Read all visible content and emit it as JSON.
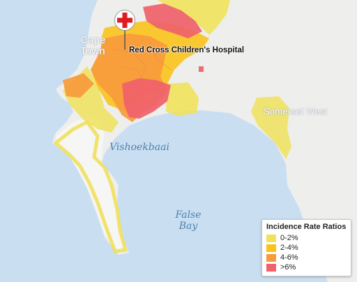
{
  "map": {
    "places": {
      "cape_town": "Cape\nTown",
      "somerset_west": "Somerset West"
    },
    "water": {
      "vishoekbaai": "Vishoekbaai",
      "false_bay": "False\nBay"
    },
    "marker": {
      "label": "Red Cross Children's Hospital",
      "icon": "red-cross-pin-icon"
    }
  },
  "legend": {
    "title": "Incidence Rate Ratios",
    "items": [
      {
        "label": "0-2%",
        "color": "#efe25c"
      },
      {
        "label": "2-4%",
        "color": "#f9c21c"
      },
      {
        "label": "4-6%",
        "color": "#f79a3c"
      },
      {
        "label": ">6%",
        "color": "#f0616a"
      }
    ]
  },
  "colors": {
    "water": "#c9dff1",
    "land": "#eeeeec"
  }
}
